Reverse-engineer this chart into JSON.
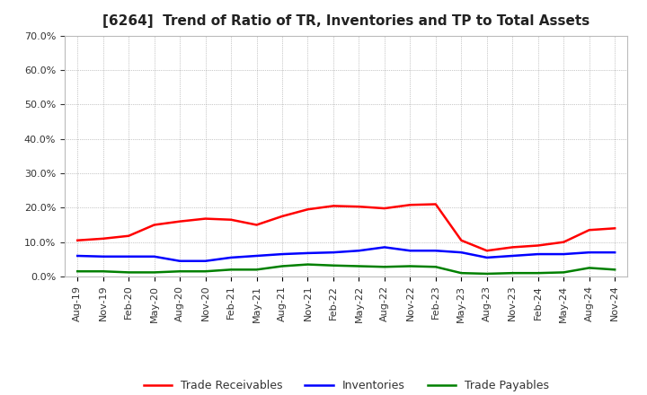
{
  "title": "[6264]  Trend of Ratio of TR, Inventories and TP to Total Assets",
  "x_labels": [
    "Aug-19",
    "Nov-19",
    "Feb-20",
    "May-20",
    "Aug-20",
    "Nov-20",
    "Feb-21",
    "May-21",
    "Aug-21",
    "Nov-21",
    "Feb-22",
    "May-22",
    "Aug-22",
    "Nov-22",
    "Feb-23",
    "May-23",
    "Aug-23",
    "Nov-23",
    "Feb-24",
    "May-24",
    "Aug-24",
    "Nov-24"
  ],
  "trade_receivables": [
    10.5,
    11.0,
    11.8,
    15.0,
    16.0,
    16.8,
    16.5,
    15.0,
    17.5,
    19.5,
    20.5,
    20.3,
    19.8,
    20.8,
    21.0,
    10.5,
    7.5,
    8.5,
    9.0,
    10.0,
    13.5,
    14.0
  ],
  "inventories": [
    6.0,
    5.8,
    5.8,
    5.8,
    4.5,
    4.5,
    5.5,
    6.0,
    6.5,
    6.8,
    7.0,
    7.5,
    8.5,
    7.5,
    7.5,
    7.0,
    5.5,
    6.0,
    6.5,
    6.5,
    7.0,
    7.0
  ],
  "trade_payables": [
    1.5,
    1.5,
    1.2,
    1.2,
    1.5,
    1.5,
    2.0,
    2.0,
    3.0,
    3.5,
    3.2,
    3.0,
    2.8,
    3.0,
    2.8,
    1.0,
    0.8,
    1.0,
    1.0,
    1.2,
    2.5,
    2.0
  ],
  "ylim": [
    0,
    70
  ],
  "yticks": [
    0,
    10,
    20,
    30,
    40,
    50,
    60,
    70
  ],
  "color_tr": "#FF0000",
  "color_inv": "#0000FF",
  "color_tp": "#008000",
  "legend_labels": [
    "Trade Receivables",
    "Inventories",
    "Trade Payables"
  ],
  "bg_color": "#FFFFFF",
  "plot_bg_color": "#FFFFFF",
  "grid_color": "#999999",
  "spine_color": "#BBBBBB",
  "title_fontsize": 11,
  "tick_fontsize": 8,
  "legend_fontsize": 9,
  "linewidth": 1.8
}
